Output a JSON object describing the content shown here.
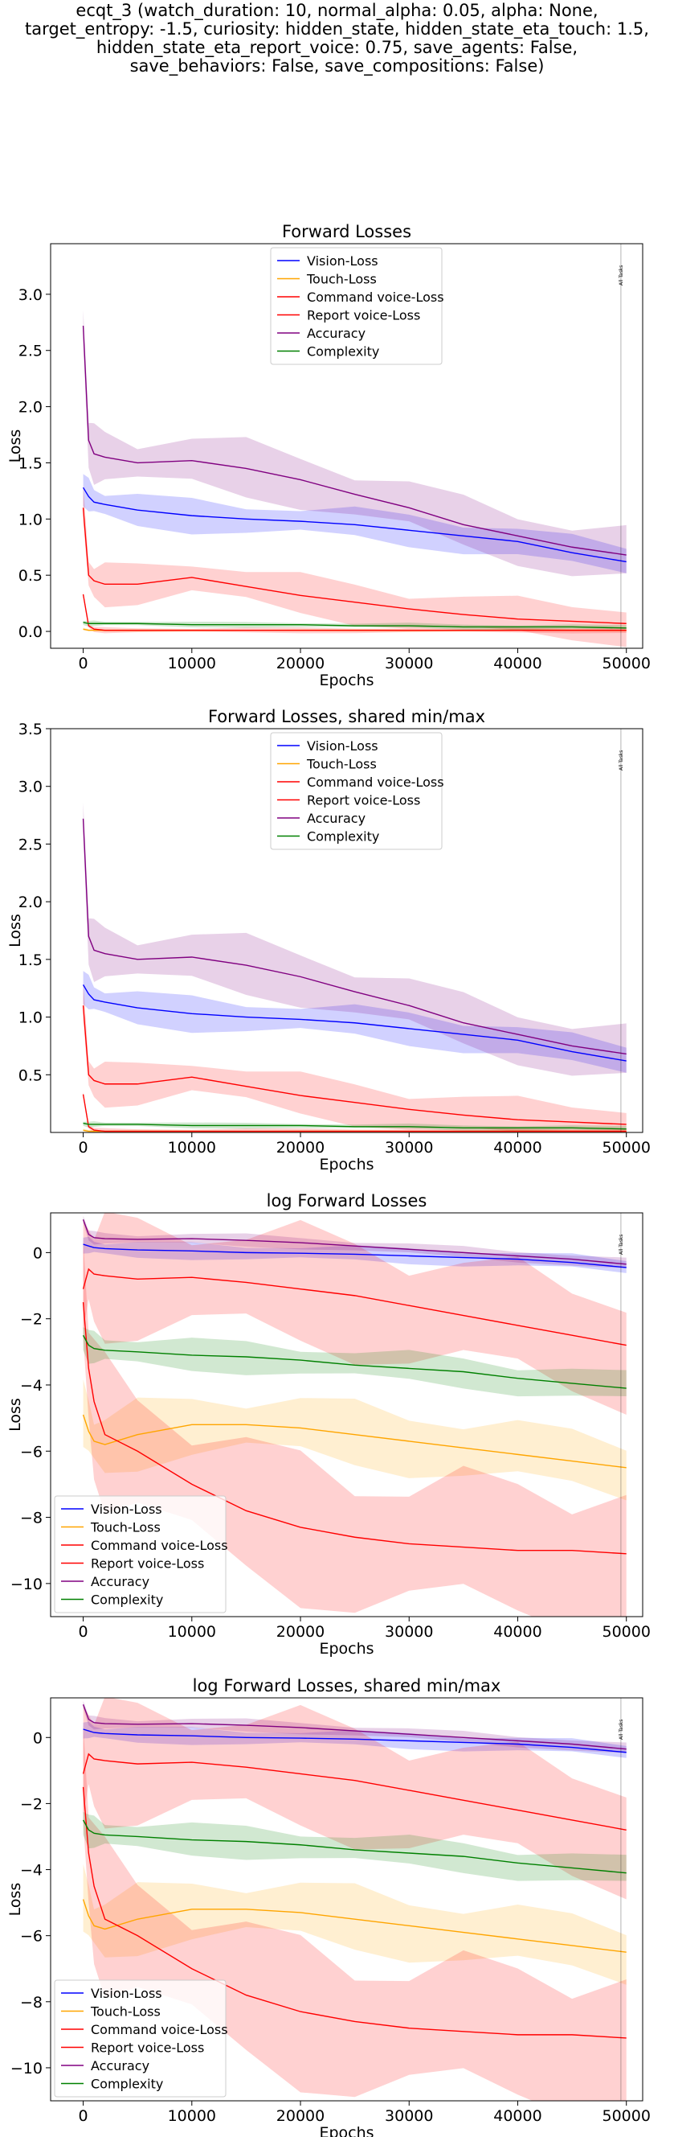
{
  "figure": {
    "suptitle_lines": [
      "ecqt_3 (watch_duration: 10, normal_alpha: 0.05, alpha: None,",
      "target_entropy: -1.5, curiosity: hidden_state, hidden_state_eta_touch: 1.5,",
      "hidden_state_eta_report_voice: 0.75, save_agents: False,",
      "save_behaviors: False, save_compositions: False)"
    ]
  },
  "colors": {
    "Vision-Loss": "#0000ff",
    "Touch-Loss": "#ffa500",
    "Command voice-Loss": "#ff0000",
    "Report voice-Loss": "#ff0000",
    "Accuracy": "#800080",
    "Complexity": "#008000"
  },
  "chart_data": [
    {
      "type": "line",
      "title": "Forward Losses",
      "xlabel": "Epochs",
      "ylabel": "Loss",
      "xlim": [
        -3000,
        51500
      ],
      "ylim": [
        -0.15,
        3.45
      ],
      "xticks": [
        0,
        10000,
        20000,
        30000,
        40000,
        50000
      ],
      "yticks": [
        0.0,
        0.5,
        1.0,
        1.5,
        2.0,
        2.5,
        3.0
      ],
      "ytick_labels": [
        "0.0",
        "0.5",
        "1.0",
        "1.5",
        "2.0",
        "2.5",
        "3.0"
      ],
      "legend_position": "upper center",
      "grid": false,
      "vline_x": 49500,
      "vline_label": "All Tasks",
      "x": [
        0,
        500,
        1000,
        2000,
        5000,
        10000,
        15000,
        20000,
        25000,
        30000,
        35000,
        40000,
        45000,
        50000
      ],
      "series": [
        {
          "name": "Vision-Loss",
          "values": [
            1.28,
            1.2,
            1.15,
            1.13,
            1.08,
            1.03,
            1.0,
            0.98,
            0.95,
            0.9,
            0.85,
            0.8,
            0.7,
            0.62
          ],
          "band": 0.12
        },
        {
          "name": "Touch-Loss",
          "values": [
            0.02,
            0.01,
            0.01,
            0.01,
            0.01,
            0.01,
            0.01,
            0.01,
            0.01,
            0.01,
            0.01,
            0.01,
            0.01,
            0.01
          ],
          "band": 0.01
        },
        {
          "name": "Command voice-Loss",
          "values": [
            1.1,
            0.5,
            0.45,
            0.42,
            0.42,
            0.48,
            0.4,
            0.32,
            0.26,
            0.2,
            0.15,
            0.11,
            0.09,
            0.07
          ],
          "band": 0.15
        },
        {
          "name": "Report voice-Loss",
          "values": [
            0.33,
            0.05,
            0.02,
            0.01,
            0.01,
            0.01,
            0.01,
            0.01,
            0.01,
            0.01,
            0.01,
            0.01,
            0.01,
            0.01
          ],
          "band": 0.02
        },
        {
          "name": "Accuracy",
          "values": [
            2.72,
            1.7,
            1.58,
            1.55,
            1.5,
            1.52,
            1.45,
            1.35,
            1.22,
            1.1,
            0.95,
            0.85,
            0.75,
            0.68
          ],
          "band": 0.2
        },
        {
          "name": "Complexity",
          "values": [
            0.08,
            0.07,
            0.07,
            0.07,
            0.07,
            0.06,
            0.06,
            0.06,
            0.05,
            0.05,
            0.04,
            0.04,
            0.04,
            0.03
          ],
          "band": 0.02
        }
      ]
    },
    {
      "type": "line",
      "title": "Forward Losses, shared min/max",
      "xlabel": "Epochs",
      "ylabel": "Loss",
      "xlim": [
        -3000,
        51500
      ],
      "ylim": [
        0.0,
        3.5
      ],
      "xticks": [
        0,
        10000,
        20000,
        30000,
        40000,
        50000
      ],
      "yticks": [
        0.5,
        1.0,
        1.5,
        2.0,
        2.5,
        3.0,
        3.5
      ],
      "ytick_labels": [
        "0.5",
        "1.0",
        "1.5",
        "2.0",
        "2.5",
        "3.0",
        "3.5"
      ],
      "legend_position": "upper center",
      "grid": false,
      "vline_x": 49500,
      "vline_label": "All Tasks",
      "x": [
        0,
        500,
        1000,
        2000,
        5000,
        10000,
        15000,
        20000,
        25000,
        30000,
        35000,
        40000,
        45000,
        50000
      ],
      "series": [
        {
          "name": "Vision-Loss",
          "values": [
            1.28,
            1.2,
            1.15,
            1.13,
            1.08,
            1.03,
            1.0,
            0.98,
            0.95,
            0.9,
            0.85,
            0.8,
            0.7,
            0.62
          ],
          "band": 0.12
        },
        {
          "name": "Touch-Loss",
          "values": [
            0.02,
            0.01,
            0.01,
            0.01,
            0.01,
            0.01,
            0.01,
            0.01,
            0.01,
            0.01,
            0.01,
            0.01,
            0.01,
            0.01
          ],
          "band": 0.01
        },
        {
          "name": "Command voice-Loss",
          "values": [
            1.1,
            0.5,
            0.45,
            0.42,
            0.42,
            0.48,
            0.4,
            0.32,
            0.26,
            0.2,
            0.15,
            0.11,
            0.09,
            0.07
          ],
          "band": 0.15
        },
        {
          "name": "Report voice-Loss",
          "values": [
            0.33,
            0.05,
            0.02,
            0.01,
            0.01,
            0.01,
            0.01,
            0.01,
            0.01,
            0.01,
            0.01,
            0.01,
            0.01,
            0.01
          ],
          "band": 0.02
        },
        {
          "name": "Accuracy",
          "values": [
            2.72,
            1.7,
            1.58,
            1.55,
            1.5,
            1.52,
            1.45,
            1.35,
            1.22,
            1.1,
            0.95,
            0.85,
            0.75,
            0.68
          ],
          "band": 0.2
        },
        {
          "name": "Complexity",
          "values": [
            0.08,
            0.07,
            0.07,
            0.07,
            0.07,
            0.06,
            0.06,
            0.06,
            0.05,
            0.05,
            0.04,
            0.04,
            0.04,
            0.03
          ],
          "band": 0.02
        }
      ]
    },
    {
      "type": "line",
      "title": "log Forward Losses",
      "xlabel": "Epochs",
      "ylabel": "Loss",
      "xlim": [
        -3000,
        51500
      ],
      "ylim": [
        -11.0,
        1.2
      ],
      "xticks": [
        0,
        10000,
        20000,
        30000,
        40000,
        50000
      ],
      "yticks": [
        0,
        -2,
        -4,
        -6,
        -8,
        -10
      ],
      "ytick_labels": [
        "0",
        "−2",
        "−4",
        "−6",
        "−8",
        "−10"
      ],
      "legend_position": "lower left",
      "grid": false,
      "vline_x": 49500,
      "vline_label": "All Tasks",
      "x": [
        0,
        500,
        1000,
        2000,
        5000,
        10000,
        15000,
        20000,
        25000,
        30000,
        35000,
        40000,
        45000,
        50000
      ],
      "series": [
        {
          "name": "Vision-Loss",
          "values": [
            0.25,
            0.2,
            0.15,
            0.12,
            0.08,
            0.05,
            0.0,
            -0.02,
            -0.05,
            -0.1,
            -0.15,
            -0.2,
            -0.3,
            -0.45
          ],
          "band": 0.2
        },
        {
          "name": "Touch-Loss",
          "values": [
            -4.9,
            -5.4,
            -5.7,
            -5.8,
            -5.5,
            -5.2,
            -5.2,
            -5.3,
            -5.5,
            -5.7,
            -5.9,
            -6.1,
            -6.3,
            -6.5
          ],
          "band": 0.8
        },
        {
          "name": "Command voice-Loss",
          "values": [
            -1.1,
            -0.5,
            -0.65,
            -0.7,
            -0.8,
            -0.75,
            -0.9,
            -1.1,
            -1.3,
            -1.6,
            -1.9,
            -2.2,
            -2.5,
            -2.8
          ],
          "band": 1.5
        },
        {
          "name": "Report voice-Loss",
          "values": [
            -1.5,
            -3.5,
            -4.5,
            -5.5,
            -6.0,
            -7.0,
            -7.8,
            -8.3,
            -8.6,
            -8.8,
            -8.9,
            -9.0,
            -9.0,
            -9.1
          ],
          "band": 1.8
        },
        {
          "name": "Accuracy",
          "values": [
            1.0,
            0.55,
            0.45,
            0.42,
            0.4,
            0.42,
            0.37,
            0.3,
            0.2,
            0.1,
            0.0,
            -0.1,
            -0.2,
            -0.35
          ],
          "band": 0.15
        },
        {
          "name": "Complexity",
          "values": [
            -2.5,
            -2.8,
            -2.9,
            -2.95,
            -3.0,
            -3.1,
            -3.15,
            -3.25,
            -3.4,
            -3.5,
            -3.6,
            -3.8,
            -3.95,
            -4.1
          ],
          "band": 0.4
        }
      ]
    },
    {
      "type": "line",
      "title": "log Forward Losses, shared min/max",
      "xlabel": "Epochs",
      "ylabel": "Loss",
      "xlim": [
        -3000,
        51500
      ],
      "ylim": [
        -11.0,
        1.2
      ],
      "xticks": [
        0,
        10000,
        20000,
        30000,
        40000,
        50000
      ],
      "yticks": [
        0,
        -2,
        -4,
        -6,
        -8,
        -10
      ],
      "ytick_labels": [
        "0",
        "−2",
        "−4",
        "−6",
        "−8",
        "−10"
      ],
      "legend_position": "lower left",
      "grid": false,
      "vline_x": 49500,
      "vline_label": "All Tasks",
      "x": [
        0,
        500,
        1000,
        2000,
        5000,
        10000,
        15000,
        20000,
        25000,
        30000,
        35000,
        40000,
        45000,
        50000
      ],
      "series": [
        {
          "name": "Vision-Loss",
          "values": [
            0.25,
            0.2,
            0.15,
            0.12,
            0.08,
            0.05,
            0.0,
            -0.02,
            -0.05,
            -0.1,
            -0.15,
            -0.2,
            -0.3,
            -0.45
          ],
          "band": 0.2
        },
        {
          "name": "Touch-Loss",
          "values": [
            -4.9,
            -5.4,
            -5.7,
            -5.8,
            -5.5,
            -5.2,
            -5.2,
            -5.3,
            -5.5,
            -5.7,
            -5.9,
            -6.1,
            -6.3,
            -6.5
          ],
          "band": 0.8
        },
        {
          "name": "Command voice-Loss",
          "values": [
            -1.1,
            -0.5,
            -0.65,
            -0.7,
            -0.8,
            -0.75,
            -0.9,
            -1.1,
            -1.3,
            -1.6,
            -1.9,
            -2.2,
            -2.5,
            -2.8
          ],
          "band": 1.5
        },
        {
          "name": "Report voice-Loss",
          "values": [
            -1.5,
            -3.5,
            -4.5,
            -5.5,
            -6.0,
            -7.0,
            -7.8,
            -8.3,
            -8.6,
            -8.8,
            -8.9,
            -9.0,
            -9.0,
            -9.1
          ],
          "band": 1.8
        },
        {
          "name": "Accuracy",
          "values": [
            1.0,
            0.55,
            0.45,
            0.42,
            0.4,
            0.42,
            0.37,
            0.3,
            0.2,
            0.1,
            0.0,
            -0.1,
            -0.2,
            -0.35
          ],
          "band": 0.15
        },
        {
          "name": "Complexity",
          "values": [
            -2.5,
            -2.8,
            -2.9,
            -2.95,
            -3.0,
            -3.1,
            -3.15,
            -3.25,
            -3.4,
            -3.5,
            -3.6,
            -3.8,
            -3.95,
            -4.1
          ],
          "band": 0.4
        }
      ]
    }
  ]
}
